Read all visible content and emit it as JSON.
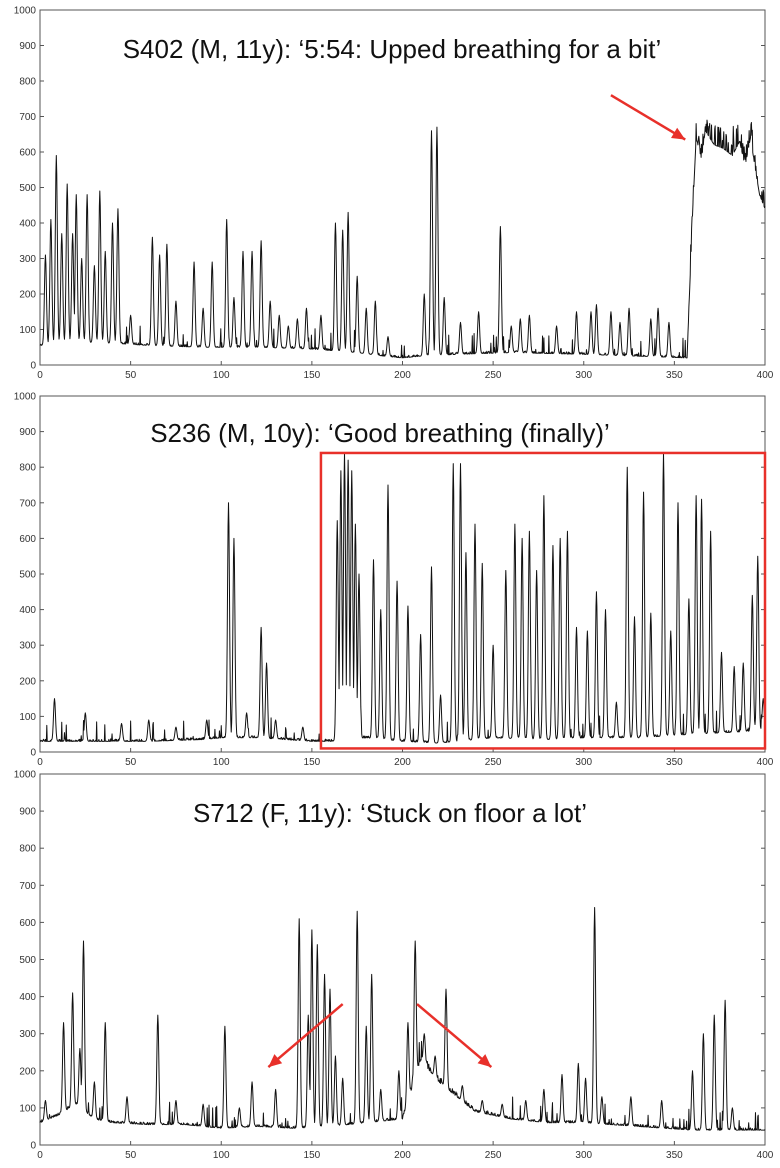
{
  "chart_data": [
    {
      "type": "line",
      "title": "S402 (M, 11y): ‘5:54: Upped breathing for a bit’",
      "xlim": [
        0,
        400
      ],
      "ylim": [
        0,
        1000
      ],
      "xticks": [
        "0",
        "50",
        "100",
        "150",
        "200",
        "250",
        "300",
        "350",
        "400"
      ],
      "yticks": [
        "0",
        "100",
        "200",
        "300",
        "400",
        "500",
        "600",
        "700",
        "800",
        "900",
        "1000"
      ],
      "baseline": [
        [
          0,
          55
        ],
        [
          20,
          65
        ],
        [
          45,
          60
        ],
        [
          60,
          55
        ],
        [
          90,
          50
        ],
        [
          120,
          50
        ],
        [
          150,
          45
        ],
        [
          175,
          35
        ],
        [
          190,
          25
        ],
        [
          200,
          20
        ],
        [
          210,
          25
        ],
        [
          230,
          30
        ],
        [
          260,
          35
        ],
        [
          300,
          30
        ],
        [
          330,
          25
        ],
        [
          357,
          20
        ]
      ],
      "peaks": [
        [
          3,
          310
        ],
        [
          6,
          410
        ],
        [
          9,
          590
        ],
        [
          12,
          370
        ],
        [
          15,
          510
        ],
        [
          18,
          370
        ],
        [
          20,
          480
        ],
        [
          23,
          300
        ],
        [
          26,
          480
        ],
        [
          30,
          280
        ],
        [
          33,
          490
        ],
        [
          36,
          320
        ],
        [
          40,
          400
        ],
        [
          43,
          440
        ],
        [
          50,
          140
        ],
        [
          62,
          360
        ],
        [
          66,
          310
        ],
        [
          70,
          340
        ],
        [
          75,
          180
        ],
        [
          85,
          290
        ],
        [
          90,
          160
        ],
        [
          95,
          290
        ],
        [
          103,
          410
        ],
        [
          107,
          190
        ],
        [
          112,
          320
        ],
        [
          117,
          320
        ],
        [
          122,
          350
        ],
        [
          127,
          180
        ],
        [
          132,
          140
        ],
        [
          137,
          110
        ],
        [
          142,
          130
        ],
        [
          147,
          160
        ],
        [
          155,
          140
        ],
        [
          163,
          400
        ],
        [
          167,
          380
        ],
        [
          170,
          430
        ],
        [
          175,
          250
        ],
        [
          180,
          160
        ],
        [
          185,
          180
        ],
        [
          192,
          80
        ],
        [
          212,
          200
        ],
        [
          216,
          660
        ],
        [
          219,
          670
        ],
        [
          223,
          190
        ],
        [
          232,
          120
        ],
        [
          242,
          150
        ],
        [
          254,
          390
        ],
        [
          260,
          110
        ],
        [
          265,
          130
        ],
        [
          270,
          140
        ],
        [
          285,
          110
        ],
        [
          296,
          150
        ],
        [
          304,
          150
        ],
        [
          307,
          170
        ],
        [
          315,
          150
        ],
        [
          320,
          120
        ],
        [
          325,
          160
        ],
        [
          337,
          130
        ],
        [
          341,
          160
        ],
        [
          347,
          120
        ]
      ],
      "plateau": [
        [
          357,
          20
        ],
        [
          360,
          420
        ],
        [
          362,
          640
        ],
        [
          365,
          580
        ],
        [
          367,
          660
        ],
        [
          372,
          620
        ],
        [
          377,
          610
        ],
        [
          382,
          590
        ],
        [
          386,
          630
        ],
        [
          389,
          560
        ],
        [
          392,
          640
        ],
        [
          395,
          540
        ],
        [
          397,
          480
        ],
        [
          400,
          440
        ]
      ],
      "annotation": {
        "type": "arrow",
        "from": [
          315,
          760
        ],
        "to": [
          356,
          635
        ]
      }
    },
    {
      "type": "line",
      "title": "S236 (M, 10y): ‘Good breathing (finally)’",
      "xlim": [
        0,
        400
      ],
      "ylim": [
        0,
        1000
      ],
      "xticks": [
        "0",
        "50",
        "100",
        "150",
        "200",
        "250",
        "300",
        "350",
        "400"
      ],
      "yticks": [
        "0",
        "100",
        "200",
        "300",
        "400",
        "500",
        "600",
        "700",
        "800",
        "900",
        "1000"
      ],
      "baseline": [
        [
          0,
          30
        ],
        [
          30,
          30
        ],
        [
          60,
          30
        ],
        [
          90,
          35
        ],
        [
          100,
          40
        ],
        [
          120,
          40
        ],
        [
          150,
          30
        ],
        [
          160,
          30
        ],
        [
          180,
          40
        ],
        [
          200,
          30
        ],
        [
          220,
          25
        ],
        [
          250,
          40
        ],
        [
          280,
          35
        ],
        [
          300,
          40
        ],
        [
          330,
          40
        ],
        [
          360,
          50
        ],
        [
          400,
          60
        ]
      ],
      "peaks": [
        [
          8,
          150
        ],
        [
          25,
          110
        ],
        [
          45,
          80
        ],
        [
          60,
          90
        ],
        [
          75,
          70
        ],
        [
          92,
          90
        ],
        [
          104,
          700
        ],
        [
          107,
          600
        ],
        [
          114,
          110
        ],
        [
          122,
          350
        ],
        [
          125,
          250
        ],
        [
          130,
          90
        ],
        [
          145,
          70
        ],
        [
          164,
          650
        ],
        [
          166,
          790
        ],
        [
          168,
          840
        ],
        [
          170,
          820
        ],
        [
          172,
          790
        ],
        [
          174,
          640
        ],
        [
          176,
          500
        ],
        [
          184,
          540
        ],
        [
          188,
          400
        ],
        [
          192,
          750
        ],
        [
          197,
          480
        ],
        [
          203,
          410
        ],
        [
          210,
          330
        ],
        [
          216,
          520
        ],
        [
          221,
          160
        ],
        [
          228,
          810
        ],
        [
          232,
          810
        ],
        [
          235,
          560
        ],
        [
          240,
          640
        ],
        [
          244,
          530
        ],
        [
          250,
          300
        ],
        [
          257,
          510
        ],
        [
          262,
          640
        ],
        [
          266,
          600
        ],
        [
          270,
          620
        ],
        [
          274,
          510
        ],
        [
          278,
          720
        ],
        [
          283,
          580
        ],
        [
          287,
          600
        ],
        [
          291,
          620
        ],
        [
          296,
          350
        ],
        [
          302,
          340
        ],
        [
          307,
          450
        ],
        [
          312,
          400
        ],
        [
          318,
          140
        ],
        [
          324,
          800
        ],
        [
          328,
          380
        ],
        [
          333,
          730
        ],
        [
          337,
          390
        ],
        [
          344,
          840
        ],
        [
          348,
          340
        ],
        [
          352,
          700
        ],
        [
          358,
          430
        ],
        [
          362,
          720
        ],
        [
          365,
          710
        ],
        [
          370,
          620
        ],
        [
          376,
          280
        ],
        [
          383,
          240
        ],
        [
          388,
          250
        ],
        [
          393,
          440
        ],
        [
          396,
          550
        ],
        [
          399,
          150
        ]
      ],
      "annotation": {
        "type": "box",
        "x0": 155,
        "x1": 400,
        "y0": 10,
        "y1": 840
      }
    },
    {
      "type": "line",
      "title": "S712 (F, 11y): ‘Stuck on floor a lot’",
      "xlim": [
        0,
        400
      ],
      "ylim": [
        0,
        1000
      ],
      "xticks": [
        "0",
        "50",
        "100",
        "150",
        "200",
        "250",
        "300",
        "350",
        "400"
      ],
      "yticks": [
        "0",
        "100",
        "200",
        "300",
        "400",
        "500",
        "600",
        "700",
        "800",
        "900",
        "1000"
      ],
      "baseline": [
        [
          0,
          60
        ],
        [
          10,
          80
        ],
        [
          20,
          110
        ],
        [
          30,
          70
        ],
        [
          40,
          60
        ],
        [
          60,
          55
        ],
        [
          80,
          55
        ],
        [
          100,
          45
        ],
        [
          120,
          50
        ],
        [
          140,
          45
        ],
        [
          160,
          50
        ],
        [
          180,
          60
        ],
        [
          200,
          70
        ],
        [
          210,
          230
        ],
        [
          220,
          170
        ],
        [
          230,
          130
        ],
        [
          240,
          90
        ],
        [
          260,
          70
        ],
        [
          280,
          60
        ],
        [
          300,
          60
        ],
        [
          330,
          50
        ],
        [
          360,
          40
        ],
        [
          380,
          40
        ],
        [
          400,
          40
        ]
      ],
      "peaks": [
        [
          3,
          120
        ],
        [
          13,
          330
        ],
        [
          18,
          410
        ],
        [
          22,
          260
        ],
        [
          24,
          550
        ],
        [
          30,
          170
        ],
        [
          36,
          330
        ],
        [
          48,
          130
        ],
        [
          65,
          350
        ],
        [
          75,
          120
        ],
        [
          90,
          110
        ],
        [
          102,
          320
        ],
        [
          110,
          100
        ],
        [
          117,
          170
        ],
        [
          130,
          150
        ],
        [
          143,
          610
        ],
        [
          148,
          350
        ],
        [
          150,
          580
        ],
        [
          153,
          540
        ],
        [
          157,
          460
        ],
        [
          160,
          420
        ],
        [
          163,
          240
        ],
        [
          167,
          180
        ],
        [
          175,
          630
        ],
        [
          180,
          320
        ],
        [
          183,
          460
        ],
        [
          188,
          150
        ],
        [
          198,
          200
        ],
        [
          203,
          330
        ],
        [
          207,
          550
        ],
        [
          212,
          300
        ],
        [
          218,
          240
        ],
        [
          224,
          420
        ],
        [
          233,
          160
        ],
        [
          244,
          120
        ],
        [
          255,
          110
        ],
        [
          268,
          120
        ],
        [
          278,
          150
        ],
        [
          288,
          190
        ],
        [
          297,
          220
        ],
        [
          301,
          180
        ],
        [
          306,
          640
        ],
        [
          310,
          130
        ],
        [
          326,
          130
        ],
        [
          343,
          120
        ],
        [
          360,
          200
        ],
        [
          366,
          300
        ],
        [
          372,
          350
        ],
        [
          378,
          390
        ],
        [
          382,
          100
        ]
      ],
      "annotations": [
        {
          "type": "arrow",
          "from": [
            167,
            380
          ],
          "to": [
            126,
            210
          ]
        },
        {
          "type": "arrow",
          "from": [
            208,
            380
          ],
          "to": [
            249,
            210
          ]
        }
      ]
    }
  ]
}
